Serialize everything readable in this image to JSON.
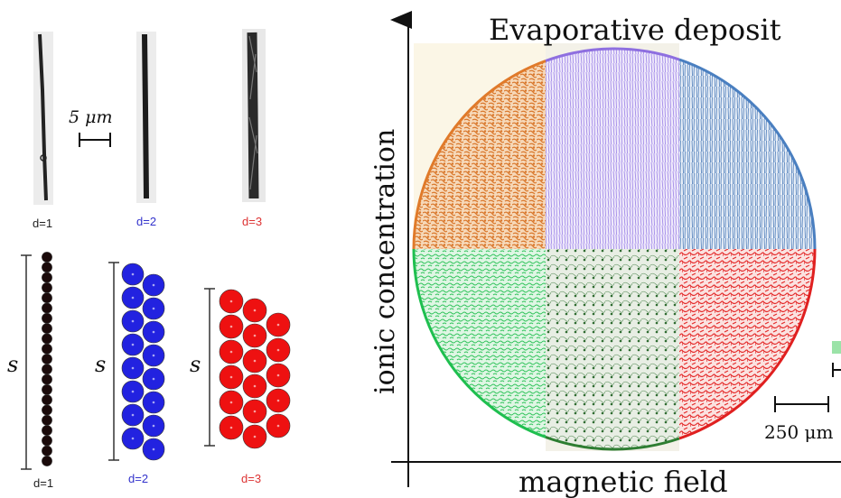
{
  "left_panel": {
    "scale_bar_label": "5 μm",
    "fiber_labels": [
      "d=1",
      "d=2",
      "d=3"
    ],
    "model_labels": [
      "d=1",
      "d=2",
      "d=3"
    ],
    "length_symbol": "s",
    "colors": {
      "d1": "#1a0a0a",
      "d2": "#2222e0",
      "d3": "#ee1111",
      "d2_label": "#3333cc",
      "d3_label": "#dd3333"
    }
  },
  "right_panel": {
    "title": "Evaporative deposit",
    "y_axis_label": "ionic concentration",
    "x_axis_label": "magnetic field",
    "scale_bar_label": "250 μm",
    "quadrant_colors": {
      "top_left": "#e07a2a",
      "top_center": "#8e6fe0",
      "top_right": "#4a7fc0",
      "bottom_left": "#1fbf4f",
      "bottom_center": "#2e7d32",
      "bottom_right": "#e02020"
    }
  }
}
